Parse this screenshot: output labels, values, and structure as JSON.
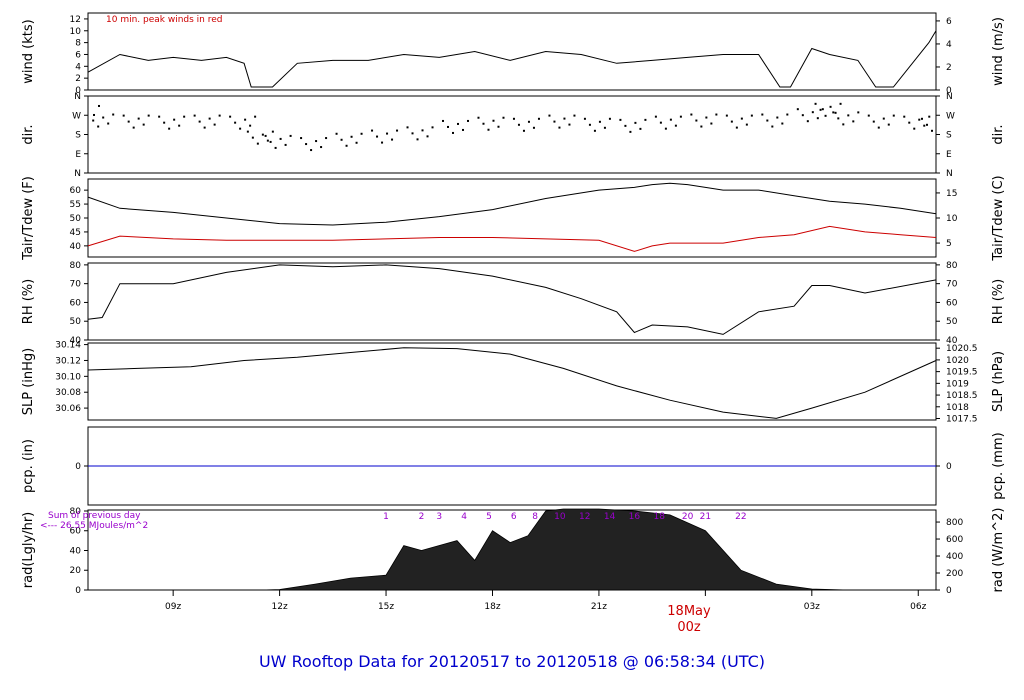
{
  "title": "UW Rooftop Data for 20120517  to  20120518 @ 06:58:34  (UTC)",
  "date_marker": {
    "day": "18May",
    "hour": "00z"
  },
  "x_ticks": [
    "09z",
    "12z",
    "15z",
    "18z",
    "21z",
    "00z",
    "03z",
    "06z"
  ],
  "panels": {
    "wind": {
      "left_label": "wind (kts)",
      "right_label": "wind (m/s)",
      "left_ticks": [
        "0",
        "2",
        "4",
        "6",
        "8",
        "10",
        "12"
      ],
      "right_ticks": [
        "0",
        "2",
        "4",
        "6"
      ],
      "note": "10 min. peak winds in red"
    },
    "dir": {
      "left_label": "dir.",
      "right_label": "dir.",
      "left_ticks": [
        "N",
        "E",
        "S",
        "W",
        "N"
      ],
      "right_ticks": [
        "N",
        "E",
        "S",
        "W",
        "N"
      ]
    },
    "temp": {
      "left_label": "Tair/Tdew (F)",
      "right_label": "Tair/Tdew (C)",
      "left_ticks": [
        "40",
        "45",
        "50",
        "55",
        "60"
      ],
      "right_ticks": [
        "5",
        "10",
        "15"
      ]
    },
    "rh": {
      "left_label": "RH (%)",
      "right_label": "RH (%)",
      "left_ticks": [
        "40",
        "50",
        "60",
        "70",
        "80"
      ],
      "right_ticks": [
        "40",
        "50",
        "60",
        "70",
        "80"
      ]
    },
    "slp": {
      "left_label": "SLP (inHg)",
      "right_label": "SLP (hPa)",
      "left_ticks": [
        "30.06",
        "30.08",
        "30.10",
        "30.12",
        "30.14"
      ],
      "right_ticks": [
        "1017.5",
        "1018",
        "1018.5",
        "1019",
        "1019.5",
        "1020",
        "1020.5"
      ]
    },
    "pcp": {
      "left_label": "pcp. (in)",
      "right_label": "pcp. (mm)",
      "left_ticks": [
        "0"
      ],
      "right_ticks": [
        "0"
      ]
    },
    "rad": {
      "left_label": "rad(Lgly/hr)",
      "right_label": "rad (W/m^2)",
      "left_ticks": [
        "0",
        "20",
        "40",
        "60",
        "80"
      ],
      "right_ticks": [
        "0",
        "200",
        "400",
        "600",
        "800"
      ],
      "sum_line1": "Sum of previous day",
      "sum_line2": "<--- 26.55 MJoules/m^2",
      "hour_marks": [
        "1",
        "2",
        "3",
        "4",
        "5",
        "6",
        "8",
        "10",
        "12",
        "14",
        "16",
        "18",
        "20",
        "21",
        "22"
      ]
    }
  },
  "chart_data": [
    {
      "type": "line",
      "panel": "wind",
      "ylabel": "wind (kts)",
      "ylim": [
        0,
        13
      ],
      "x_hours": [
        6.6,
        7.5,
        8.3,
        9,
        9.8,
        10.5,
        11,
        11.2,
        11.5,
        11.8,
        12.5,
        13.5,
        14.5,
        15.5,
        16.5,
        17.5,
        18.5,
        19.5,
        20.5,
        21.5,
        22.5,
        23.5,
        24.5,
        25.5,
        26.1,
        26.4,
        27,
        27.5,
        28.3,
        28.8,
        29.3,
        30.3,
        30.5
      ],
      "series": [
        {
          "name": "wind",
          "values": [
            3,
            6,
            5,
            5.5,
            5,
            5.5,
            4.5,
            0.5,
            0.5,
            0.5,
            4.5,
            5,
            5,
            6,
            5.5,
            6.5,
            5,
            6.5,
            6,
            4.5,
            5,
            5.5,
            6,
            6,
            0.5,
            0.5,
            7,
            6,
            5,
            0.5,
            0.5,
            8,
            10
          ]
        }
      ]
    },
    {
      "type": "scatter",
      "panel": "dir",
      "ylabel": "dir.",
      "ylim": [
        0,
        360
      ],
      "x_hours": [
        6.6,
        7,
        8,
        9,
        10,
        11,
        11.5,
        12,
        13,
        14,
        15,
        16,
        17,
        18,
        19,
        20,
        21,
        22,
        23,
        24,
        25,
        26,
        27,
        27.5,
        28,
        29,
        30,
        30.5
      ],
      "series": [
        {
          "name": "dir",
          "values": [
            290,
            250,
            245,
            240,
            245,
            240,
            170,
            150,
            140,
            160,
            175,
            190,
            220,
            235,
            230,
            245,
            230,
            225,
            240,
            250,
            245,
            250,
            275,
            300,
            260,
            245,
            240,
            230
          ]
        }
      ]
    },
    {
      "type": "line",
      "panel": "temp",
      "ylabel": "Tair/Tdew (F)",
      "ylim": [
        36,
        64
      ],
      "x_hours": [
        6.6,
        7.5,
        9,
        10.5,
        12,
        13.5,
        15,
        16.5,
        18,
        19.5,
        21,
        22,
        22.5,
        23,
        23.5,
        24,
        24.5,
        25.5,
        26.5,
        27.5,
        28.5,
        29.5,
        30.5
      ],
      "series": [
        {
          "name": "Tair",
          "values": [
            57.5,
            53.5,
            52,
            50,
            48,
            47.5,
            48.5,
            50.5,
            53,
            57,
            60,
            61,
            62,
            62.5,
            62,
            61,
            60,
            60,
            58,
            56,
            55,
            53.5,
            51.5
          ]
        },
        {
          "name": "Tdew",
          "values": [
            40,
            43.5,
            42.5,
            42,
            42,
            42,
            42.5,
            43,
            43,
            42.5,
            42,
            38,
            40,
            41,
            41,
            41,
            41,
            43,
            44,
            47,
            45,
            44,
            43
          ]
        }
      ]
    },
    {
      "type": "line",
      "panel": "rh",
      "ylabel": "RH (%)",
      "ylim": [
        40,
        81
      ],
      "x_hours": [
        6.6,
        7,
        7.5,
        9,
        10.5,
        12,
        13.5,
        15,
        16.5,
        18,
        19.5,
        20.5,
        21.5,
        22,
        22.5,
        23.5,
        24.5,
        25.5,
        26.5,
        27,
        27.5,
        28.5,
        30.5
      ],
      "series": [
        {
          "name": "RH",
          "values": [
            51,
            52,
            70,
            70,
            76,
            80,
            79,
            80,
            78,
            74,
            68,
            62,
            55,
            44,
            48,
            47,
            43,
            55,
            58,
            69,
            69,
            65,
            72
          ]
        }
      ]
    },
    {
      "type": "line",
      "panel": "slp",
      "ylabel": "SLP (inHg)",
      "ylim": [
        30.045,
        30.142
      ],
      "x_hours": [
        6.6,
        8,
        9.5,
        11,
        12.5,
        14,
        15.5,
        17,
        18.5,
        20,
        21.5,
        23,
        24.5,
        26,
        27,
        28.5,
        30.5
      ],
      "series": [
        {
          "name": "SLP",
          "values": [
            30.108,
            30.11,
            30.112,
            30.12,
            30.124,
            30.13,
            30.136,
            30.135,
            30.128,
            30.11,
            30.088,
            30.07,
            30.055,
            30.047,
            30.06,
            30.08,
            30.12
          ]
        }
      ]
    },
    {
      "type": "line",
      "panel": "pcp",
      "ylabel": "pcp. (in)",
      "ylim": [
        -1,
        1
      ],
      "x_hours": [
        6.6,
        30.5
      ],
      "series": [
        {
          "name": "pcp",
          "values": [
            0,
            0
          ]
        }
      ]
    },
    {
      "type": "area",
      "panel": "rad",
      "ylabel": "rad(Lgly/hr)",
      "ylim": [
        0,
        81
      ],
      "x_hours": [
        6.6,
        11.5,
        12,
        13,
        14,
        15,
        15.5,
        16,
        17,
        17.5,
        18,
        18.5,
        19,
        19.5,
        20,
        21,
        22,
        23,
        24,
        25,
        26,
        27,
        28
      ],
      "series": [
        {
          "name": "rad",
          "values": [
            0,
            0,
            0.5,
            6,
            12,
            15,
            45,
            40,
            50,
            30,
            60,
            48,
            55,
            80,
            82,
            82,
            80,
            76,
            60,
            20,
            6,
            1,
            0
          ]
        }
      ]
    }
  ]
}
